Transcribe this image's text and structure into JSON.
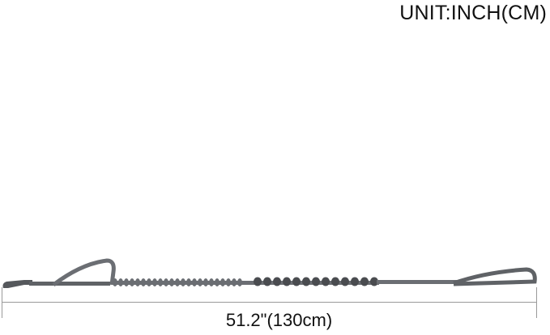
{
  "unit_label": "UNIT:INCH(CM)",
  "length_label": "51.2\"(130cm)",
  "colors": {
    "leash": "#6b6e73",
    "leash_dark": "#4a4c50",
    "dimension_line": "#9a9a9a",
    "text": "#111111"
  }
}
